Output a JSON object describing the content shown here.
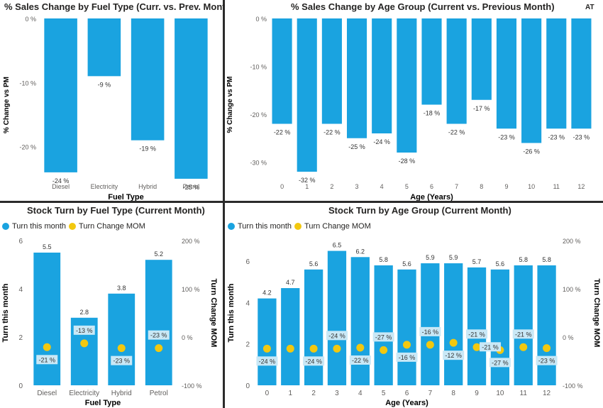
{
  "colors": {
    "bar": "#1aa3e0",
    "dot": "#f2c80f",
    "label_bg": "#c9e8f6",
    "axis_text": "#605e5c"
  },
  "corner_tag": "AT",
  "chart_data": [
    {
      "id": "fuel_change",
      "type": "bar",
      "title": "% Sales Change by Fuel Type (Curr. vs. Prev. Month)",
      "xlabel": "Fuel Type",
      "ylabel": "% Change vs PM",
      "categories": [
        "Diesel",
        "Electricity",
        "Hybrid",
        "Petrol"
      ],
      "values": [
        -24,
        -9,
        -19,
        -25
      ],
      "value_labels": [
        "-24 %",
        "-9 %",
        "-19 %",
        "-25 %"
      ],
      "yticks": [
        0,
        -10,
        -20
      ],
      "ytick_labels": [
        "0 %",
        "-10 %",
        "-20 %"
      ],
      "ylim": [
        -27,
        0
      ]
    },
    {
      "id": "age_change",
      "type": "bar",
      "title": "% Sales Change by Age Group (Current vs. Previous Month)",
      "xlabel": "Age (Years)",
      "ylabel": "% Change vs PM",
      "categories": [
        "0",
        "1",
        "2",
        "3",
        "4",
        "5",
        "6",
        "7",
        "8",
        "9",
        "10",
        "11",
        "12"
      ],
      "values": [
        -22,
        -32,
        -22,
        -25,
        -24,
        -28,
        -18,
        -22,
        -17,
        -23,
        -26,
        -23,
        -23
      ],
      "value_labels": [
        "-22 %",
        "-32 %",
        "-22 %",
        "-25 %",
        "-24 %",
        "-28 %",
        "-18 %",
        "-22 %",
        "-17 %",
        "-23 %",
        "-26 %",
        "-23 %",
        "-23 %"
      ],
      "yticks": [
        0,
        -10,
        -20,
        -30
      ],
      "ytick_labels": [
        "0 %",
        "-10 %",
        "-20 %",
        "-30 %"
      ],
      "ylim": [
        -36,
        0
      ]
    },
    {
      "id": "fuel_turn",
      "type": "bar",
      "title": "Stock Turn by Fuel Type (Current Month)",
      "xlabel": "Fuel Type",
      "ylabel": "Turn this month",
      "y2label": "Turn Change MOM",
      "legend": [
        "Turn this month",
        "Turn Change MOM"
      ],
      "categories": [
        "Diesel",
        "Electricity",
        "Hybrid",
        "Petrol"
      ],
      "series": [
        {
          "name": "Turn this month",
          "values": [
            5.5,
            2.8,
            3.8,
            5.2
          ],
          "labels": [
            "5.5",
            "2.8",
            "3.8",
            "5.2"
          ]
        },
        {
          "name": "Turn Change MOM",
          "values": [
            -21,
            -13,
            -23,
            -23
          ],
          "labels": [
            "-21 %",
            "-13 %",
            "-23 %",
            "-23 %"
          ]
        }
      ],
      "yticks": [
        0,
        2,
        4,
        6
      ],
      "ytick_labels": [
        "0",
        "2",
        "4",
        "6"
      ],
      "ylim": [
        0,
        6
      ],
      "y2ticks": [
        -100,
        0,
        100,
        200
      ],
      "y2tick_labels": [
        "-100 %",
        "0 %",
        "100 %",
        "200 %"
      ],
      "y2lim": [
        -100,
        200
      ]
    },
    {
      "id": "age_turn",
      "type": "bar",
      "title": "Stock Turn by Age Group (Current Month)",
      "xlabel": "Age (Years)",
      "ylabel": "Turn this month",
      "y2label": "Turn Change MOM",
      "legend": [
        "Turn this month",
        "Turn Change MOM"
      ],
      "categories": [
        "0",
        "1",
        "2",
        "3",
        "4",
        "5",
        "6",
        "7",
        "8",
        "9",
        "10",
        "11",
        "12"
      ],
      "series": [
        {
          "name": "Turn this month",
          "values": [
            4.2,
            4.7,
            5.6,
            6.5,
            6.2,
            5.8,
            5.6,
            5.9,
            5.9,
            5.7,
            5.6,
            5.8,
            5.8
          ],
          "labels": [
            "4.2",
            "4.7",
            "5.6",
            "6.5",
            "6.2",
            "5.8",
            "5.6",
            "5.9",
            "5.9",
            "5.7",
            "5.6",
            "5.8",
            "5.8"
          ]
        },
        {
          "name": "Turn Change MOM",
          "values": [
            -24,
            -24,
            -24,
            -24,
            -22,
            -27,
            -16,
            -16,
            -12,
            -21,
            -27,
            -21,
            -23
          ],
          "labels": [
            "-24 %",
            "",
            "-24 %",
            "-24 %",
            "-22 %",
            "-27 %",
            "-16 %",
            "-16 %",
            "-12 %",
            "-21 %",
            "-27 %",
            "-21 %",
            "-23 %"
          ]
        }
      ],
      "extra_labels": [
        "-21 %"
      ],
      "yticks": [
        0,
        2,
        4,
        6
      ],
      "ytick_labels": [
        "0",
        "2",
        "4",
        "6"
      ],
      "ylim": [
        0,
        7
      ],
      "y2ticks": [
        -100,
        0,
        100,
        200
      ],
      "y2tick_labels": [
        "-100 %",
        "0 %",
        "100 %",
        "200 %"
      ],
      "y2lim": [
        -100,
        200
      ]
    }
  ]
}
